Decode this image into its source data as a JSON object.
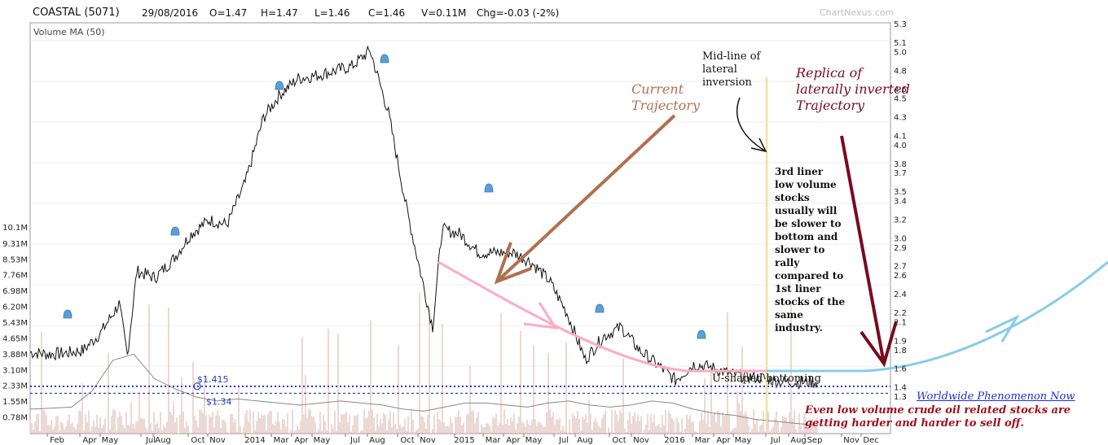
{
  "header": {
    "symbol": "COASTAL (5071)",
    "date": "29/08/2016",
    "open": "O=1.47",
    "high": "H=1.47",
    "low": "L=1.46",
    "close": "C=1.46",
    "volume": "V=0.11M",
    "change": "Chg=-0.03 (-2%)"
  },
  "watermark": "ChartNexus.com",
  "volume_legend": "Volume MA (50)",
  "annotations": {
    "current_trajectory": "Current\nTrajectory",
    "midline": "Mid-line of\nlateral\ninversion",
    "replica": "Replica of\nlaterally inverted\nTrajectory",
    "note_3rd_liner": "3rd liner\nlow volume\nstocks\nusually will\nbe slower to\nbottom and\nslower to\nrally\ncompared to\n1st liner\nstocks of the\nsame\nindustry.",
    "u_shaped": "U-shaped bottoming",
    "worldwide": "Worldwide Phenomenon Now",
    "even_low": "Even low volume crude oil related stocks are\ngetting harder and harder to sell off."
  },
  "colors": {
    "price_line": "#111111",
    "pink_curve": "#ffaac4",
    "brown_arrow": "#b07050",
    "maroon_arrow": "#7a0a1e",
    "blue_curve": "#87cde8",
    "dotted_level": "#2233cc",
    "midline": "#f0e0a0",
    "volume_bar": "#d9b0a8",
    "volume_ma": "#888888",
    "alert_bell": "#5aa0d8"
  },
  "chart_data": {
    "type": "line",
    "title": "COASTAL (5071)",
    "x_ticks": [
      "Feb",
      "Apr",
      "May",
      "Jul",
      "Aug",
      "Oct",
      "Nov",
      "2014",
      "Mar",
      "Apr",
      "May",
      "Jul",
      "Aug",
      "Oct",
      "Nov",
      "2015",
      "Mar",
      "Apr",
      "May",
      "Jul",
      "Aug",
      "Oct",
      "Nov",
      "2016",
      "Mar",
      "Apr",
      "May",
      "Jul",
      "Aug",
      "Sep",
      "Nov",
      "Dec"
    ],
    "price_ticks": [
      5.3,
      5.1,
      5.0,
      4.8,
      4.6,
      4.5,
      4.3,
      4.1,
      4.0,
      3.8,
      3.7,
      3.5,
      3.4,
      3.2,
      3.0,
      2.9,
      2.7,
      2.6,
      2.4,
      2.2,
      2.1,
      1.9,
      1.8,
      1.6,
      1.4,
      1.3
    ],
    "volume_ticks": [
      "10.1M",
      "9.31M",
      "8.53M",
      "7.76M",
      "6.98M",
      "6.20M",
      "5.43M",
      "4.65M",
      "3.88M",
      "3.10M",
      "2.33M",
      "1.55M",
      "0.78M"
    ],
    "levels": [
      {
        "label": "$1.415",
        "value": 1.415
      },
      {
        "label": "$1.34",
        "value": 1.34
      }
    ],
    "series": [
      {
        "x": [
          "2013-01-01",
          "2013-02-01",
          "2013-03-01",
          "2013-04-01",
          "2013-05-01",
          "2013-06-01",
          "2013-06-15",
          "2013-07-01",
          "2013-08-01",
          "2013-09-01",
          "2013-10-01",
          "2013-11-01",
          "2013-12-01",
          "2014-01-01",
          "2014-02-01",
          "2014-03-01",
          "2014-04-01",
          "2014-05-01",
          "2014-06-01",
          "2014-07-01",
          "2014-08-01",
          "2014-09-01",
          "2014-10-01",
          "2014-11-01",
          "2014-11-15",
          "2014-12-01",
          "2015-01-01",
          "2015-02-01",
          "2015-03-01",
          "2015-04-01",
          "2015-05-01",
          "2015-06-01",
          "2015-07-01",
          "2015-08-01",
          "2015-09-01",
          "2015-10-01",
          "2015-11-01",
          "2015-12-01",
          "2016-01-01",
          "2016-02-01",
          "2016-03-01",
          "2016-04-01",
          "2016-05-01",
          "2016-06-01",
          "2016-07-01",
          "2016-08-29"
        ],
        "values": [
          1.78,
          1.76,
          1.77,
          1.8,
          1.99,
          2.3,
          1.75,
          2.65,
          2.58,
          2.78,
          3.05,
          3.2,
          3.15,
          3.6,
          4.3,
          4.55,
          4.72,
          4.75,
          4.8,
          4.85,
          5.02,
          4.35,
          3.35,
          2.45,
          2.05,
          3.1,
          3.05,
          2.85,
          2.85,
          2.85,
          2.75,
          2.55,
          2.2,
          1.7,
          1.95,
          2.05,
          1.8,
          1.65,
          1.48,
          1.65,
          1.62,
          1.55,
          1.52,
          1.5,
          1.46,
          1.46
        ]
      }
    ],
    "volume_ma": [
      1.2,
      1.25,
      1.3,
      2.1,
      3.6,
      3.9,
      2.7,
      2.2,
      1.8,
      1.6,
      1.7,
      1.6,
      1.5,
      1.4,
      1.5,
      1.6,
      1.5,
      1.4,
      1.2,
      1.1,
      1.3,
      1.5,
      1.5,
      1.4,
      1.3,
      1.5,
      1.6,
      1.4,
      1.3,
      1.4,
      1.6,
      1.5,
      1.2,
      1.0,
      0.9,
      0.7,
      0.6,
      0.5,
      0.4
    ]
  }
}
